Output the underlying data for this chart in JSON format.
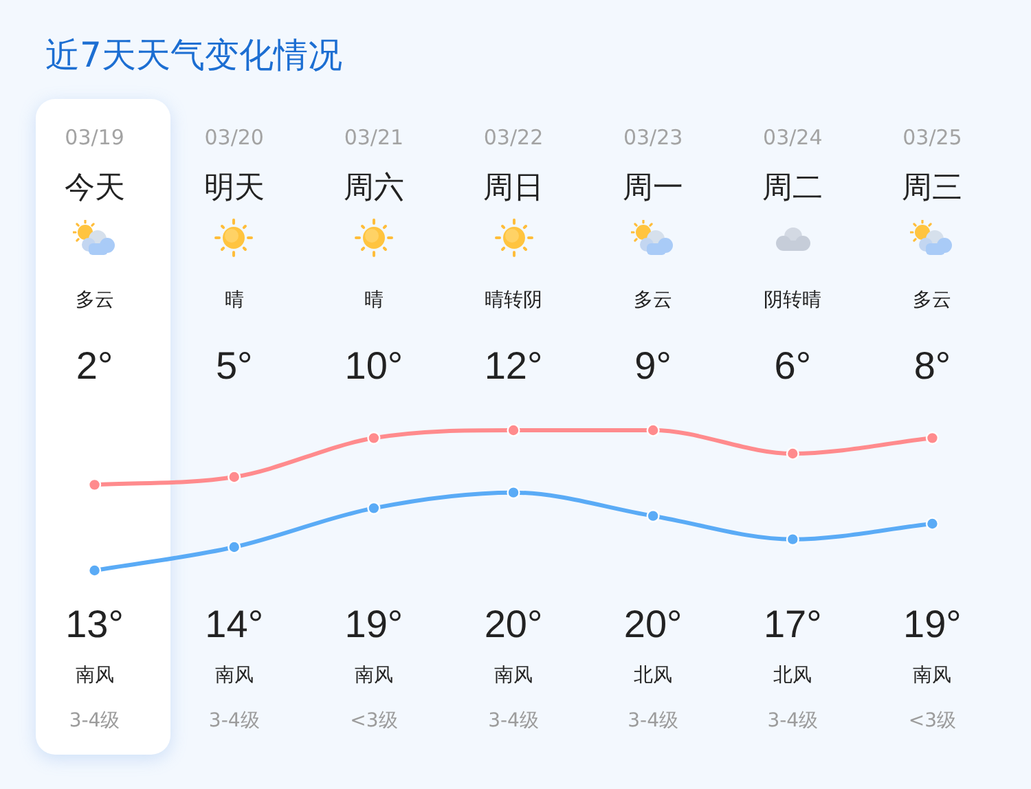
{
  "chart_data": {
    "type": "line",
    "title": "近7天天气变化情况",
    "categories": [
      "03/19",
      "03/20",
      "03/21",
      "03/22",
      "03/23",
      "03/24",
      "03/25"
    ],
    "series": [
      {
        "color": "#5aabf6",
        "values": [
          2,
          5,
          10,
          12,
          9,
          6,
          8
        ],
        "value_labels": [
          "2°",
          "5°",
          "10°",
          "12°",
          "9°",
          "6°",
          "8°"
        ]
      },
      {
        "color": "#ff8b8d",
        "values": [
          13,
          14,
          19,
          20,
          20,
          17,
          19
        ],
        "value_labels": [
          "13°",
          "14°",
          "19°",
          "20°",
          "20°",
          "17°",
          "19°"
        ]
      }
    ],
    "annotations": [
      "今天",
      "明天",
      "周六",
      "周日",
      "周一",
      "周二",
      "周三",
      "多云",
      "晴",
      "晴",
      "晴转阴",
      "多云",
      "阴转晴",
      "多云",
      "南风",
      "南风",
      "南风",
      "南风",
      "北风",
      "北风",
      "南风",
      "3-4级",
      "3-4级",
      "<3级",
      "3-4级",
      "3-4级",
      "3-4级",
      "<3级"
    ],
    "marker": "circle",
    "line_style": "solid",
    "tick_labels": "x"
  }
}
